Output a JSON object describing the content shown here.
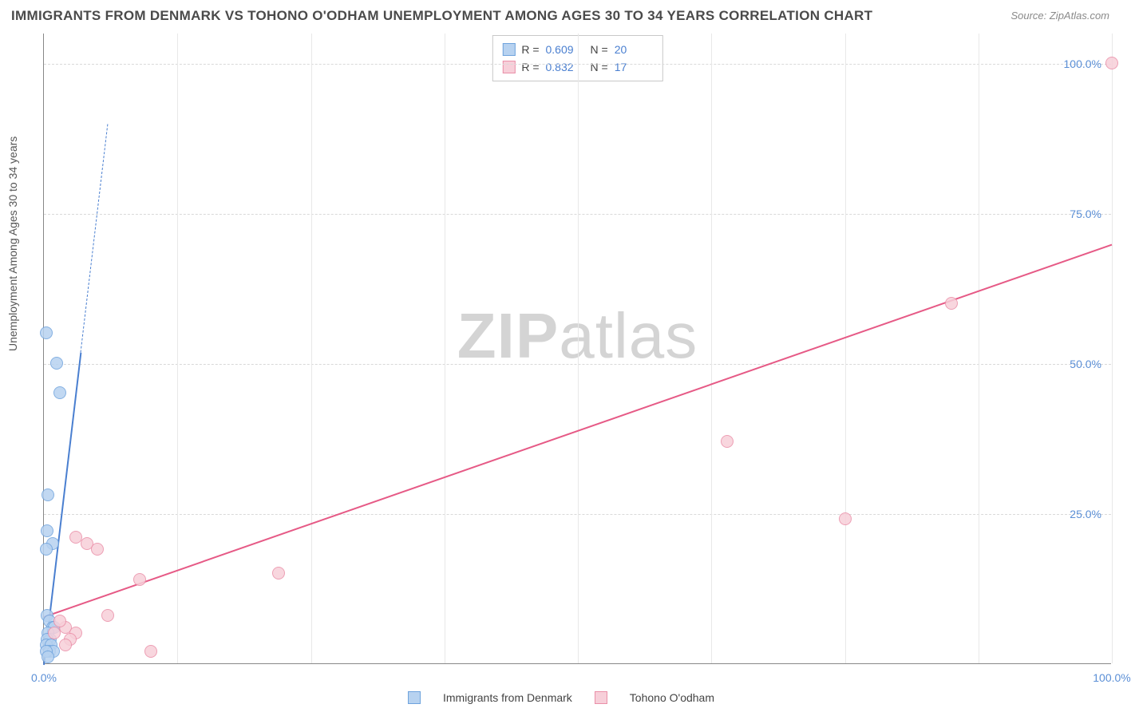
{
  "title": "IMMIGRANTS FROM DENMARK VS TOHONO O'ODHAM UNEMPLOYMENT AMONG AGES 30 TO 34 YEARS CORRELATION CHART",
  "source": "Source: ZipAtlas.com",
  "ylabel": "Unemployment Among Ages 30 to 34 years",
  "watermark_part1": "ZIP",
  "watermark_part2": "atlas",
  "chart": {
    "type": "scatter",
    "xlim": [
      0,
      100
    ],
    "ylim": [
      0,
      105
    ],
    "x_ticks": [
      {
        "v": 0,
        "label": "0.0%"
      },
      {
        "v": 100,
        "label": "100.0%"
      }
    ],
    "y_ticks": [
      {
        "v": 25,
        "label": "25.0%"
      },
      {
        "v": 50,
        "label": "50.0%"
      },
      {
        "v": 75,
        "label": "75.0%"
      },
      {
        "v": 100,
        "label": "100.0%"
      }
    ],
    "grid_v_positions": [
      12.5,
      25,
      37.5,
      50,
      62.5,
      75,
      87.5,
      100
    ],
    "grid_color": "#e0e0e0",
    "background_color": "#ffffff",
    "series": [
      {
        "name": "Immigrants from Denmark",
        "color_fill": "#b7d2f0",
        "color_stroke": "#6fa3dd",
        "trend_color": "#4a7fd0",
        "R": "0.609",
        "N": "20",
        "trend": {
          "x1": 0,
          "y1": 0,
          "x2": 6,
          "y2": 90,
          "dash_from_y": 52
        },
        "points": [
          {
            "x": 0.2,
            "y": 55
          },
          {
            "x": 1.2,
            "y": 50
          },
          {
            "x": 1.5,
            "y": 45
          },
          {
            "x": 0.4,
            "y": 28
          },
          {
            "x": 0.3,
            "y": 22
          },
          {
            "x": 0.8,
            "y": 20
          },
          {
            "x": 0.2,
            "y": 19
          },
          {
            "x": 0.3,
            "y": 8
          },
          {
            "x": 0.5,
            "y": 7
          },
          {
            "x": 0.8,
            "y": 6
          },
          {
            "x": 1.0,
            "y": 6
          },
          {
            "x": 0.4,
            "y": 5
          },
          {
            "x": 0.6,
            "y": 4
          },
          {
            "x": 0.3,
            "y": 4
          },
          {
            "x": 0.2,
            "y": 3
          },
          {
            "x": 0.7,
            "y": 3
          },
          {
            "x": 0.5,
            "y": 2
          },
          {
            "x": 0.9,
            "y": 2
          },
          {
            "x": 0.2,
            "y": 2
          },
          {
            "x": 0.4,
            "y": 1
          }
        ]
      },
      {
        "name": "Tohono O'odham",
        "color_fill": "#f7cfd9",
        "color_stroke": "#ea8fa8",
        "trend_color": "#e65a86",
        "R": "0.832",
        "N": "17",
        "trend": {
          "x1": 0,
          "y1": 8,
          "x2": 100,
          "y2": 70
        },
        "points": [
          {
            "x": 100,
            "y": 100
          },
          {
            "x": 85,
            "y": 60
          },
          {
            "x": 64,
            "y": 37
          },
          {
            "x": 75,
            "y": 24
          },
          {
            "x": 22,
            "y": 15
          },
          {
            "x": 9,
            "y": 14
          },
          {
            "x": 4,
            "y": 20
          },
          {
            "x": 5,
            "y": 19
          },
          {
            "x": 3,
            "y": 21
          },
          {
            "x": 6,
            "y": 8
          },
          {
            "x": 10,
            "y": 2
          },
          {
            "x": 2,
            "y": 6
          },
          {
            "x": 3,
            "y": 5
          },
          {
            "x": 1.5,
            "y": 7
          },
          {
            "x": 2.5,
            "y": 4
          },
          {
            "x": 1,
            "y": 5
          },
          {
            "x": 2,
            "y": 3
          }
        ]
      }
    ]
  },
  "legend_top_labels": {
    "R": "R =",
    "N": "N ="
  },
  "legend_bottom": [
    "Immigrants from Denmark",
    "Tohono O'odham"
  ]
}
